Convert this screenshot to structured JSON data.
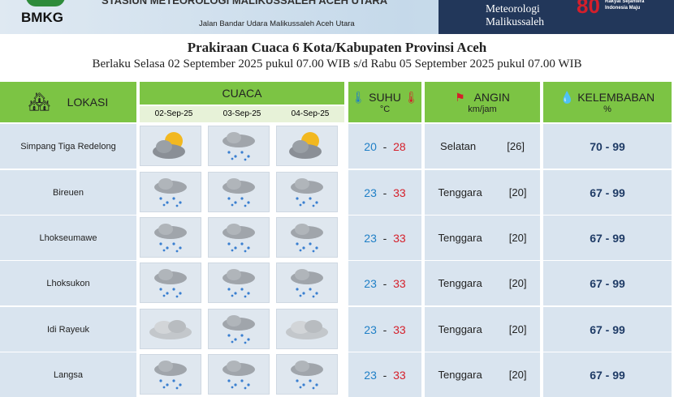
{
  "header": {
    "logo": "BMKG",
    "station": "STASIUN METEOROLOGI MALIKUSSALEH ACEH UTARA",
    "address": "Jalan Bandar Udara Malikussaleh Aceh  Utara",
    "right_name_1": "Meteorologi",
    "right_name_2": "Malikussaleh",
    "anniversary_logo": "80",
    "anniversary_tagline": "Rakyat Sejahtera Indonesia Maju"
  },
  "title": "Prakiraan Cuaca 6 Kota/Kabupaten Provinsi Aceh",
  "subtitle": "Berlaku Selasa 02 September 2025 pukul 07.00 WIB s/d Rabu 05 September 2025 pukul 07.00 WIB",
  "columns": {
    "lokasi": "LOKASI",
    "cuaca": "CUACA",
    "dates": [
      "02-Sep-25",
      "03-Sep-25",
      "04-Sep-25"
    ],
    "suhu": "SUHU",
    "suhu_unit": "°C",
    "angin": "ANGIN",
    "angin_unit": "km/jam",
    "kelembaban": "KELEMBABAN",
    "kelembaban_unit": "%"
  },
  "rows": [
    {
      "loc": "Simpang Tiga Redelong",
      "wx": [
        "partly-cloudy",
        "rain",
        "partly-cloudy"
      ],
      "tmin": "20",
      "tmax": "28",
      "wind_dir": "Selatan",
      "wind_speed": "[26]",
      "hum": "70 - 99"
    },
    {
      "loc": "Bireuen",
      "wx": [
        "rain",
        "rain",
        "rain"
      ],
      "tmin": "23",
      "tmax": "33",
      "wind_dir": "Tenggara",
      "wind_speed": "[20]",
      "hum": "67 - 99"
    },
    {
      "loc": "Lhokseumawe",
      "wx": [
        "rain",
        "rain",
        "rain"
      ],
      "tmin": "23",
      "tmax": "33",
      "wind_dir": "Tenggara",
      "wind_speed": "[20]",
      "hum": "67 - 99"
    },
    {
      "loc": "Lhoksukon",
      "wx": [
        "rain",
        "rain",
        "rain"
      ],
      "tmin": "23",
      "tmax": "33",
      "wind_dir": "Tenggara",
      "wind_speed": "[20]",
      "hum": "67 - 99"
    },
    {
      "loc": "Idi Rayeuk",
      "wx": [
        "cloudy",
        "rain",
        "cloudy"
      ],
      "tmin": "23",
      "tmax": "33",
      "wind_dir": "Tenggara",
      "wind_speed": "[20]",
      "hum": "67 - 99"
    },
    {
      "loc": "Langsa",
      "wx": [
        "rain",
        "rain",
        "rain"
      ],
      "tmin": "23",
      "tmax": "33",
      "wind_dir": "Tenggara",
      "wind_speed": "[20]",
      "hum": "67 - 99"
    }
  ],
  "colors": {
    "header_green": "#7cc444",
    "row_bg": "#d9e4ef",
    "min_temp": "#1f7fc6",
    "max_temp": "#d51f2a",
    "navy": "#22375a"
  }
}
